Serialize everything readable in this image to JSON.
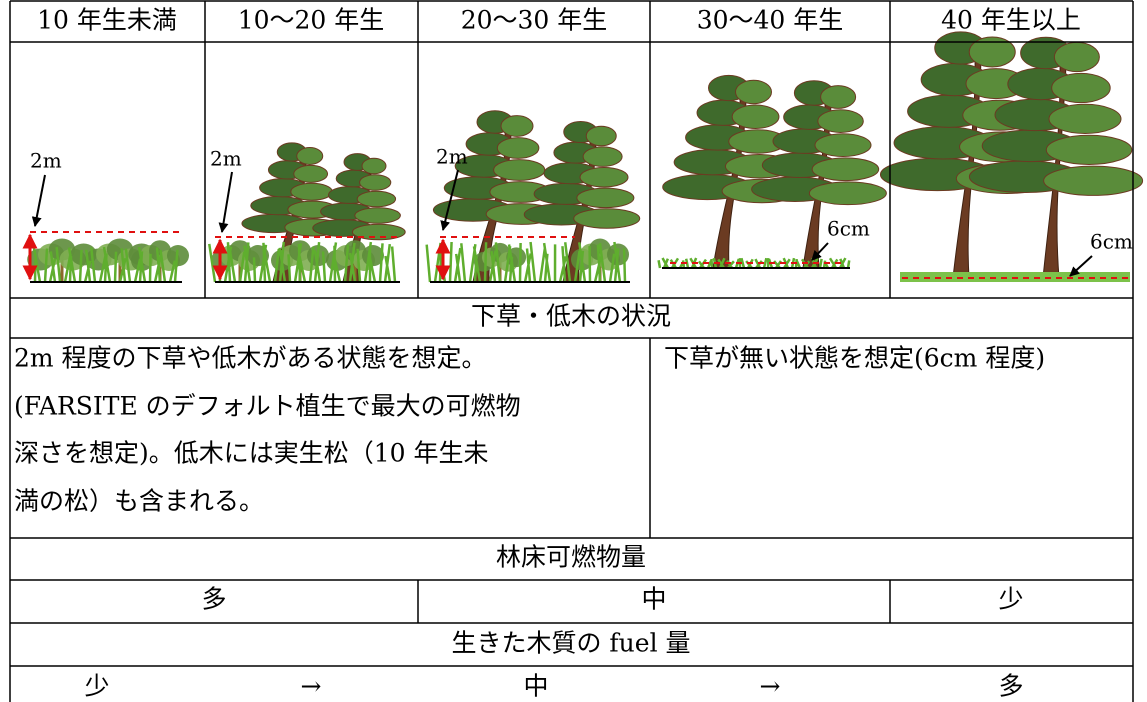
{
  "header": {
    "columns": [
      "10 年生未満",
      "10～20 年生",
      "20～30 年生",
      "30～40 年生",
      "40 年生以上"
    ]
  },
  "illustrations": [
    {
      "label": "2m"
    },
    {
      "label": "2m"
    },
    {
      "label": "2m"
    },
    {
      "label": "6cm"
    },
    {
      "label": "6cm"
    }
  ],
  "understory": {
    "title": "下草・低木の状況",
    "with_shrubs": [
      "2m 程度の下草や低木がある状態を想定。",
      "(FARSITE のデフォルト植生で最大の可燃物",
      "深さを想定)。低木には実生松（10 年生未",
      "満の松）も含まれる。"
    ],
    "without_shrubs": "下草が無い状態を想定(6cm 程度)"
  },
  "floor_fuel": {
    "title": "林床可燃物量",
    "levels": [
      "多",
      "中",
      "少"
    ]
  },
  "live_fuel": {
    "title": "生きた木質の fuel 量",
    "scale": [
      "少",
      "→",
      "中",
      "→",
      "多"
    ]
  }
}
